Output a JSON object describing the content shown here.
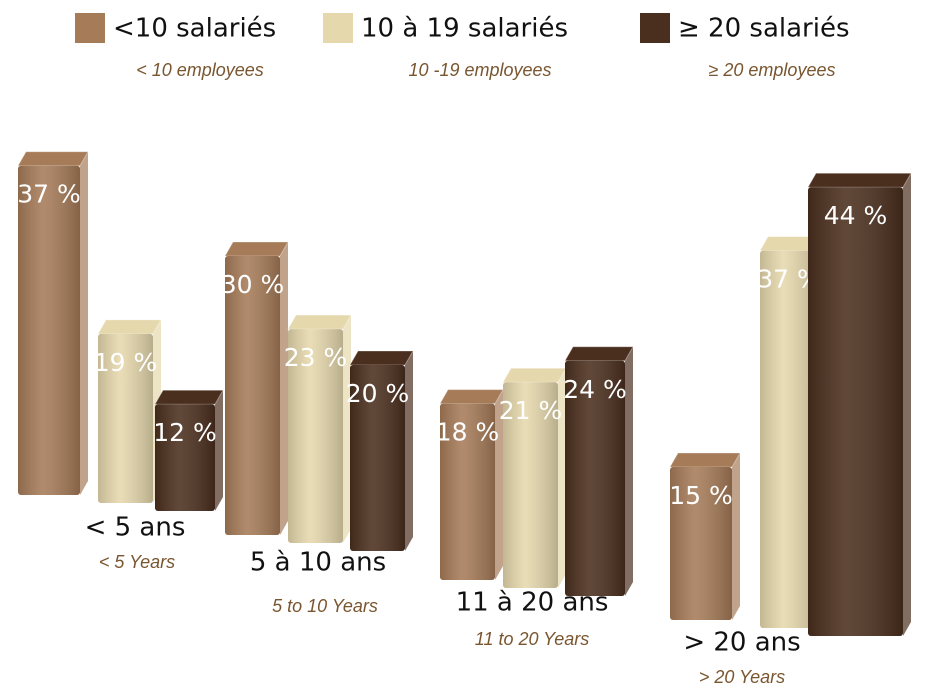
{
  "chart_data": {
    "type": "bar",
    "categories": [
      "< 5 ans",
      "5 à 10 ans",
      "11 à 20 ans",
      "> 20 ans"
    ],
    "category_subtitles": [
      "< 5 Years",
      "5 to 10 Years",
      "11 to 20 Years",
      "> 20 Years"
    ],
    "series": [
      {
        "name": "<10 salariés",
        "subtitle": "< 10 employees",
        "color": "#a67b58",
        "values": [
          37,
          30,
          18,
          15
        ],
        "value_labels": [
          "37 %",
          "30 %",
          "18 %",
          "15 %"
        ]
      },
      {
        "name": "10 à 19 salariés",
        "subtitle": "10 -19 employees",
        "color": "#e6d8ad",
        "values": [
          19,
          23,
          21,
          37
        ],
        "value_labels": [
          "19 %",
          "23 %",
          "21 %",
          "37 %"
        ]
      },
      {
        "name": "≥ 20 salariés",
        "subtitle": "≥ 20 employees",
        "color": "#4b2f1e",
        "values": [
          12,
          20,
          24,
          44
        ],
        "value_labels": [
          "12 %",
          "20 %",
          "24 %",
          "44 %"
        ]
      }
    ]
  }
}
